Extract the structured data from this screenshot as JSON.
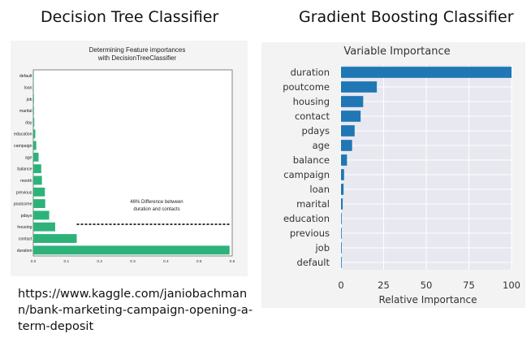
{
  "slide": {
    "left_heading": "Decision Tree Classifier",
    "right_heading": "Gradient Boosting Classifier",
    "source_url": "https://www.kaggle.com/janiobachmann/bank-marketing-campaign-opening-a-term-deposit"
  },
  "colors": {
    "dt_bar": "#2db37a",
    "gb_bar": "#1f77b4",
    "gb_bg": "#e8e8f0"
  },
  "chart_data": [
    {
      "type": "bar",
      "orientation": "horizontal",
      "title": "Determining Feature importances\nwith DecisionTreeClassifier",
      "title_lines": [
        "Determining Feature importances",
        "with DecisionTreeClassifier"
      ],
      "categories": [
        "default",
        "loan",
        "job",
        "marital",
        "day",
        "education",
        "campaign",
        "age",
        "balance",
        "month",
        "previous",
        "poutcome",
        "pdays",
        "housing",
        "contact",
        "duration"
      ],
      "values": [
        0.001,
        0.001,
        0.002,
        0.002,
        0.003,
        0.006,
        0.009,
        0.016,
        0.024,
        0.026,
        0.035,
        0.036,
        0.048,
        0.066,
        0.131,
        0.592
      ],
      "xlim": [
        0,
        0.6
      ],
      "xticks": [
        "0.0",
        "0.1",
        "0.2",
        "0.3",
        "0.4",
        "0.5",
        "0.6"
      ],
      "annotation": [
        "46% Difference between",
        "duration and contacts"
      ],
      "dashed_line": {
        "y_category": "housing",
        "x_start": 0.131,
        "x_end": 0.592
      },
      "grid": false
    },
    {
      "type": "bar",
      "orientation": "horizontal",
      "title": "Variable Importance",
      "xlabel": "Relative Importance",
      "categories": [
        "default",
        "job",
        "previous",
        "education",
        "marital",
        "loan",
        "campaign",
        "balance",
        "age",
        "pdays",
        "contact",
        "housing",
        "poutcome",
        "duration"
      ],
      "values": [
        0,
        0,
        0,
        0,
        1,
        1.5,
        1.8,
        3.5,
        6.5,
        8,
        11.5,
        13,
        21,
        100
      ],
      "xlim": [
        0,
        100
      ],
      "xticks": [
        "0",
        "25",
        "50",
        "75",
        "100"
      ],
      "grid": true
    }
  ]
}
